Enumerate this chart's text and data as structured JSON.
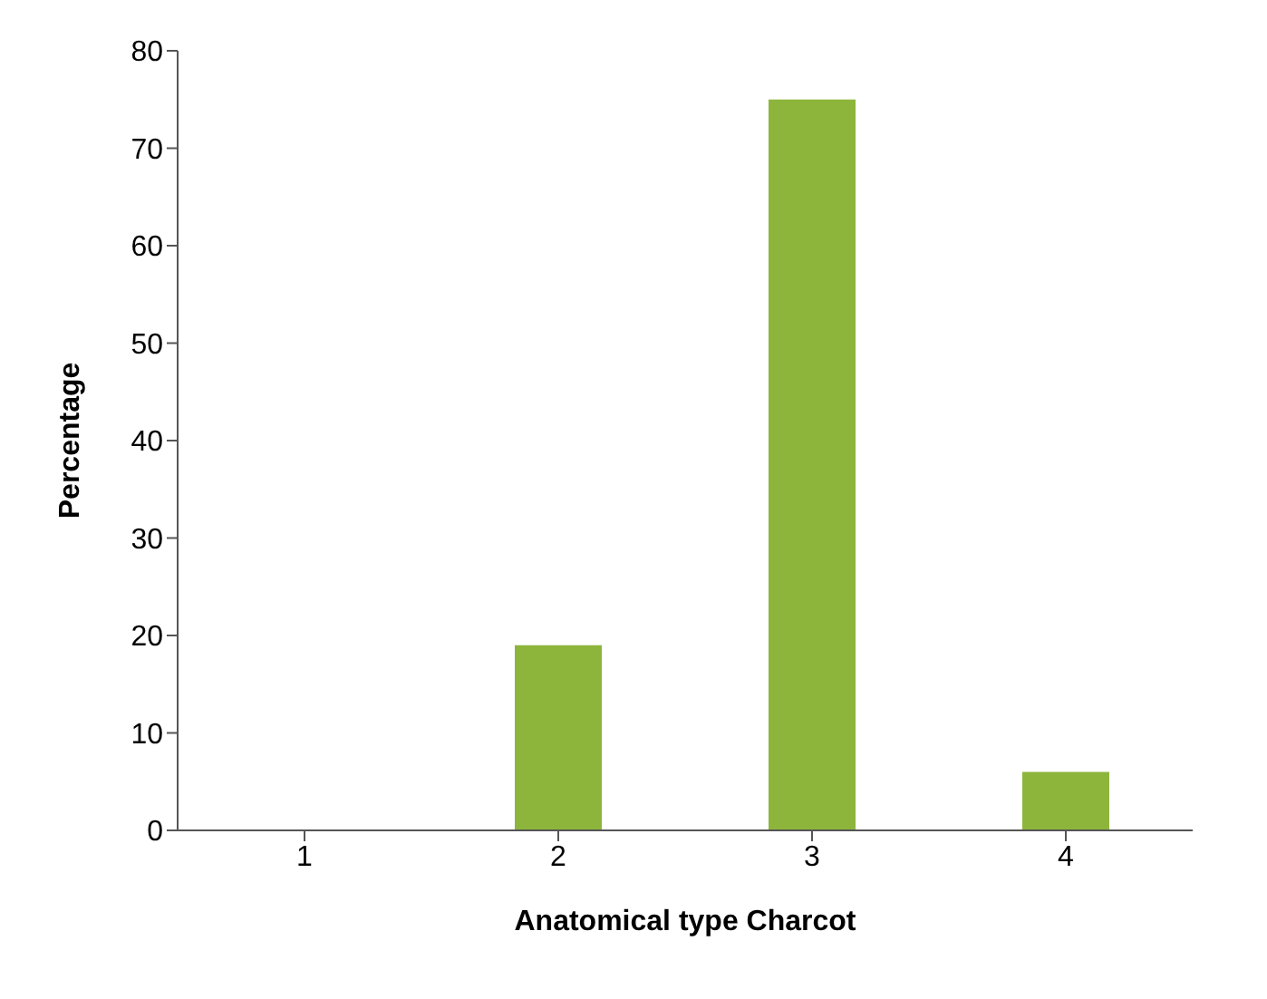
{
  "chart_data": {
    "type": "bar",
    "xlabel": "Anatomical  type Charcot",
    "ylabel": "Percentage",
    "categories": [
      "1",
      "2",
      "3",
      "4"
    ],
    "values": [
      0,
      19,
      75,
      6
    ],
    "color": "#8db53c",
    "ylim": [
      0,
      80
    ],
    "yticks": [
      0,
      10,
      20,
      30,
      40,
      50,
      60,
      70,
      80
    ],
    "grid": false,
    "legend": false
  }
}
